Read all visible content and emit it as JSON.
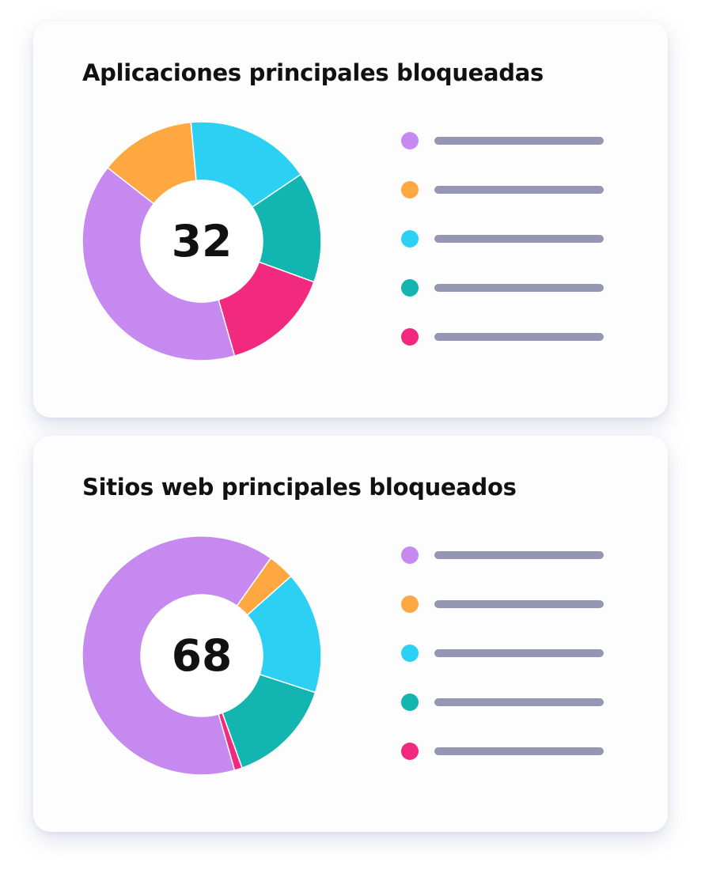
{
  "chart_data": [
    {
      "type": "pie",
      "title": "Aplicaciones principales bloqueadas",
      "center_label": "32",
      "categories": [
        "",
        "",
        "",
        "",
        ""
      ],
      "values": [
        40,
        13,
        17,
        15,
        15
      ],
      "colors": [
        "#c589ef",
        "#ffa842",
        "#2bd0f3",
        "#12b5b0",
        "#f22a7f"
      ],
      "legend": {
        "placement": "right",
        "colors": [
          "#c589ef",
          "#ffa842",
          "#2bd0f3",
          "#12b5b0",
          "#f22a7f"
        ]
      }
    },
    {
      "type": "pie",
      "title": "Sitios web principales bloqueados",
      "center_label": "68",
      "categories": [
        "",
        "",
        "",
        "",
        ""
      ],
      "values": [
        62,
        3.5,
        16,
        14,
        1
      ],
      "colors": [
        "#c589ef",
        "#ffa842",
        "#2bd0f3",
        "#12b5b0",
        "#f22a7f"
      ],
      "legend": {
        "placement": "right",
        "colors": [
          "#c589ef",
          "#ffa842",
          "#2bd0f3",
          "#12b5b0",
          "#f22a7f"
        ]
      }
    }
  ]
}
